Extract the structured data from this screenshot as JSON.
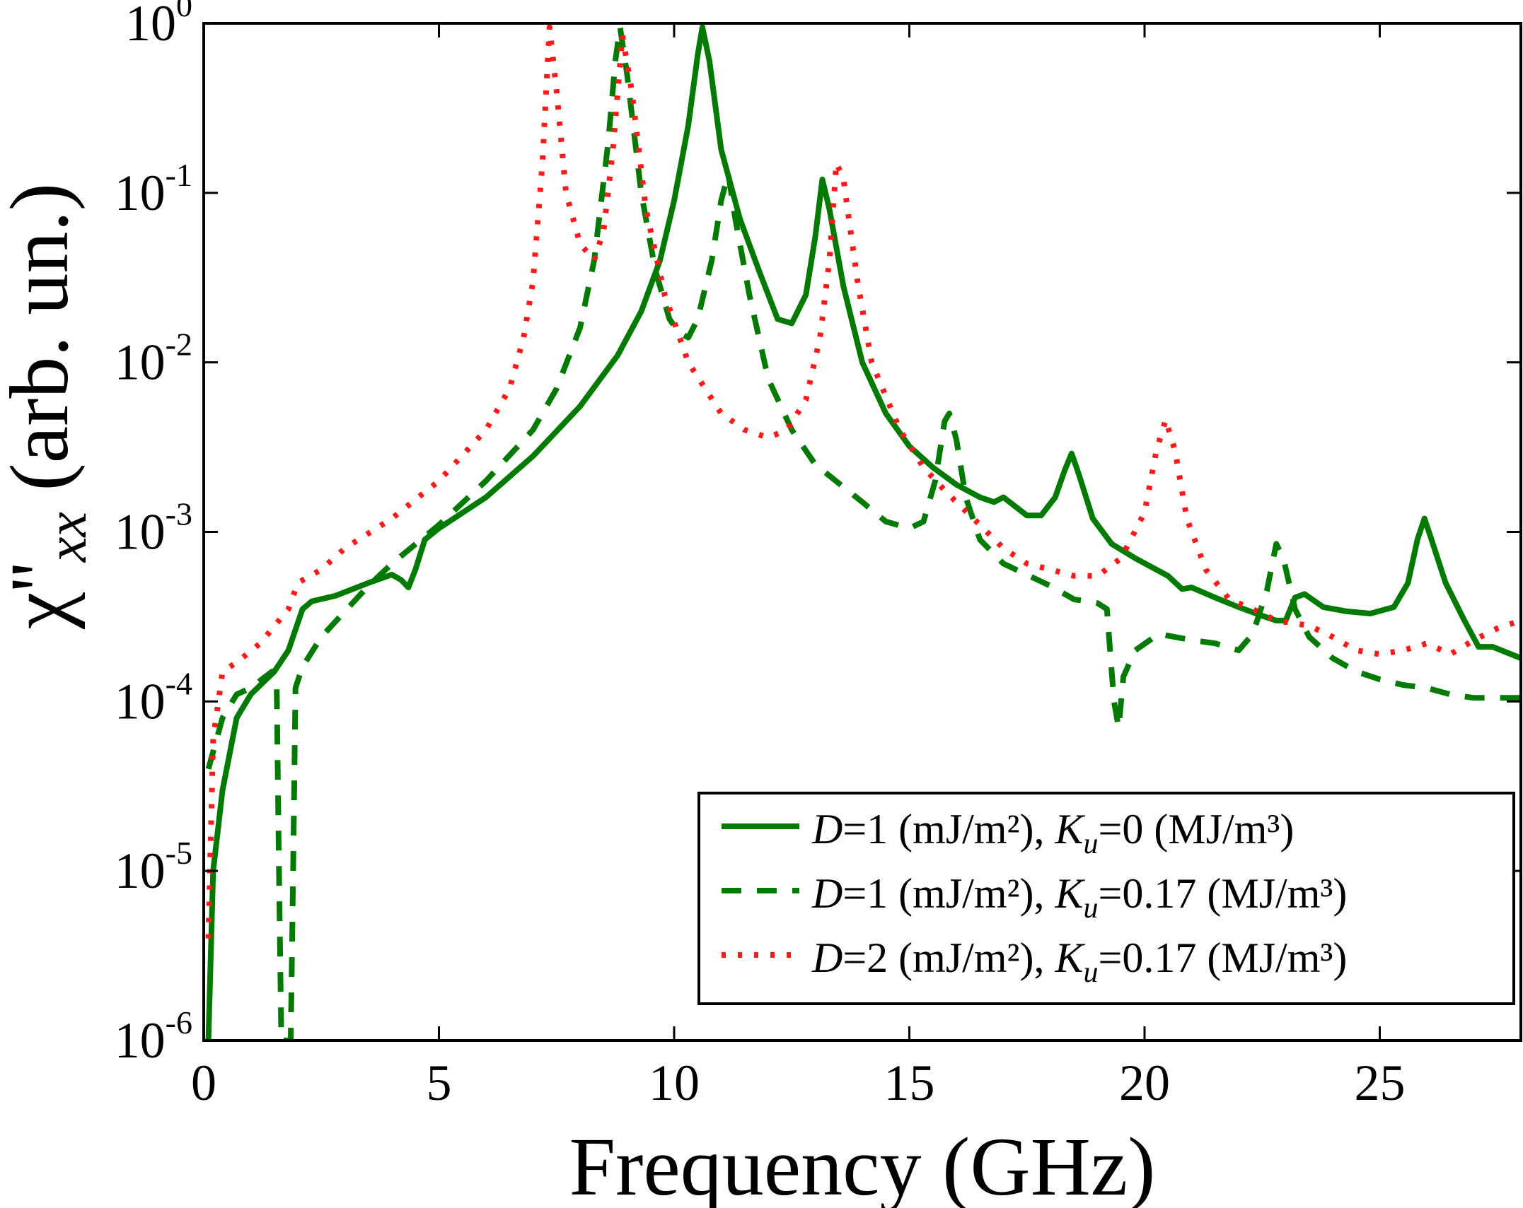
{
  "chart_data": {
    "type": "line",
    "xlabel": "Frequency (GHz)",
    "ylabel": "(arb. un.)",
    "ylabel_symbol": "χ''",
    "ylabel_subscript": "xx",
    "xlim": [
      0,
      28
    ],
    "ylim": [
      1e-06,
      1
    ],
    "yscale": "log",
    "grid": false,
    "legend_position": "lower-right",
    "x_ticks": [
      {
        "value": 0,
        "label": "0"
      },
      {
        "value": 5,
        "label": "5"
      },
      {
        "value": 10,
        "label": "10"
      },
      {
        "value": 15,
        "label": "15"
      },
      {
        "value": 20,
        "label": "20"
      },
      {
        "value": 25,
        "label": "25"
      }
    ],
    "y_ticks": [
      {
        "value": 1e-06,
        "base": "10",
        "exp": "-6"
      },
      {
        "value": 1e-05,
        "base": "10",
        "exp": "-5"
      },
      {
        "value": 0.0001,
        "base": "10",
        "exp": "-4"
      },
      {
        "value": 0.001,
        "base": "10",
        "exp": "-3"
      },
      {
        "value": 0.01,
        "base": "10",
        "exp": "-2"
      },
      {
        "value": 0.1,
        "base": "10",
        "exp": "-1"
      },
      {
        "value": 1,
        "base": "10",
        "exp": "0"
      }
    ],
    "series": [
      {
        "name": "D=1 (mJ/m²), Ku=0 (MJ/m³)",
        "legend_var1": "D",
        "legend_mid": "=1 (mJ/m²), ",
        "legend_var2": "K",
        "legend_sub": "u",
        "legend_end": "=0 (MJ/m³)",
        "color": "#007a00",
        "style": "solid",
        "points": [
          [
            0.1,
            1e-06
          ],
          [
            0.2,
            1e-05
          ],
          [
            0.4,
            3e-05
          ],
          [
            0.7,
            8e-05
          ],
          [
            1.0,
            0.00011
          ],
          [
            1.5,
            0.00015
          ],
          [
            1.8,
            0.0002
          ],
          [
            2.1,
            0.00035
          ],
          [
            2.3,
            0.00039
          ],
          [
            2.8,
            0.00042
          ],
          [
            3.5,
            0.0005
          ],
          [
            4.0,
            0.00056
          ],
          [
            4.2,
            0.00052
          ],
          [
            4.35,
            0.00047
          ],
          [
            4.5,
            0.0006
          ],
          [
            4.7,
            0.0009
          ],
          [
            5.0,
            0.00105
          ],
          [
            6.0,
            0.0016
          ],
          [
            7.0,
            0.0028
          ],
          [
            8.0,
            0.0055
          ],
          [
            8.8,
            0.011
          ],
          [
            9.3,
            0.02
          ],
          [
            9.7,
            0.04
          ],
          [
            10.0,
            0.09
          ],
          [
            10.3,
            0.25
          ],
          [
            10.5,
            0.65
          ],
          [
            10.6,
            0.95
          ],
          [
            10.75,
            0.6
          ],
          [
            11.0,
            0.18
          ],
          [
            11.4,
            0.07
          ],
          [
            11.8,
            0.035
          ],
          [
            12.2,
            0.018
          ],
          [
            12.5,
            0.017
          ],
          [
            12.8,
            0.025
          ],
          [
            13.0,
            0.055
          ],
          [
            13.15,
            0.12
          ],
          [
            13.3,
            0.08
          ],
          [
            13.6,
            0.028
          ],
          [
            14.0,
            0.01
          ],
          [
            14.5,
            0.005
          ],
          [
            15.0,
            0.0032
          ],
          [
            15.5,
            0.0024
          ],
          [
            16.0,
            0.0019
          ],
          [
            16.5,
            0.0016
          ],
          [
            16.8,
            0.0015
          ],
          [
            17.0,
            0.0016
          ],
          [
            17.2,
            0.00145
          ],
          [
            17.5,
            0.00125
          ],
          [
            17.8,
            0.00125
          ],
          [
            18.1,
            0.0016
          ],
          [
            18.3,
            0.0023
          ],
          [
            18.45,
            0.0029
          ],
          [
            18.6,
            0.0022
          ],
          [
            18.9,
            0.0012
          ],
          [
            19.3,
            0.00085
          ],
          [
            19.8,
            0.0007
          ],
          [
            20.5,
            0.00055
          ],
          [
            20.8,
            0.00046
          ],
          [
            21.0,
            0.00047
          ],
          [
            21.5,
            0.00041
          ],
          [
            22.0,
            0.00036
          ],
          [
            22.5,
            0.00032
          ],
          [
            22.8,
            0.0003
          ],
          [
            23.0,
            0.0003
          ],
          [
            23.2,
            0.00041
          ],
          [
            23.4,
            0.00043
          ],
          [
            23.8,
            0.00036
          ],
          [
            24.3,
            0.00034
          ],
          [
            24.8,
            0.00033
          ],
          [
            25.3,
            0.00036
          ],
          [
            25.6,
            0.0005
          ],
          [
            25.8,
            0.0009
          ],
          [
            25.95,
            0.0012
          ],
          [
            26.1,
            0.0009
          ],
          [
            26.4,
            0.0005
          ],
          [
            26.8,
            0.0003
          ],
          [
            27.1,
            0.00021
          ],
          [
            27.4,
            0.00021
          ],
          [
            28.0,
            0.00018
          ]
        ]
      },
      {
        "name": "D=1 (mJ/m²), Ku=0.17 (MJ/m³)",
        "legend_var1": "D",
        "legend_mid": "=1 (mJ/m²), ",
        "legend_var2": "K",
        "legend_sub": "u",
        "legend_end": "=0.17 (MJ/m³)",
        "color": "#007a00",
        "style": "dashed",
        "points": [
          [
            0.1,
            4e-05
          ],
          [
            0.4,
            8e-05
          ],
          [
            0.7,
            0.00011
          ],
          [
            1.0,
            0.00012
          ],
          [
            1.45,
            0.00015
          ],
          [
            1.55,
            0.00013
          ],
          [
            1.6,
            1e-05
          ],
          [
            1.65,
            1e-06
          ],
          [
            1.85,
            1e-06
          ],
          [
            1.9,
            1e-05
          ],
          [
            1.95,
            0.00012
          ],
          [
            2.1,
            0.00016
          ],
          [
            2.5,
            0.00024
          ],
          [
            3.0,
            0.00034
          ],
          [
            3.5,
            0.00048
          ],
          [
            4.0,
            0.00065
          ],
          [
            5.0,
            0.0011
          ],
          [
            6.0,
            0.002
          ],
          [
            7.0,
            0.004
          ],
          [
            7.5,
            0.007
          ],
          [
            8.0,
            0.016
          ],
          [
            8.3,
            0.04
          ],
          [
            8.6,
            0.2
          ],
          [
            8.75,
            0.6
          ],
          [
            8.85,
            0.95
          ],
          [
            9.0,
            0.5
          ],
          [
            9.3,
            0.1
          ],
          [
            9.6,
            0.035
          ],
          [
            9.9,
            0.018
          ],
          [
            10.1,
            0.015
          ],
          [
            10.3,
            0.014
          ],
          [
            10.5,
            0.018
          ],
          [
            10.8,
            0.04
          ],
          [
            11.0,
            0.09
          ],
          [
            11.15,
            0.13
          ],
          [
            11.3,
            0.07
          ],
          [
            11.6,
            0.025
          ],
          [
            12.0,
            0.008
          ],
          [
            12.5,
            0.004
          ],
          [
            13.0,
            0.0025
          ],
          [
            14.0,
            0.0015
          ],
          [
            14.5,
            0.00115
          ],
          [
            15.0,
            0.00105
          ],
          [
            15.3,
            0.00115
          ],
          [
            15.55,
            0.002
          ],
          [
            15.75,
            0.0045
          ],
          [
            15.85,
            0.005
          ],
          [
            16.0,
            0.0035
          ],
          [
            16.2,
            0.0016
          ],
          [
            16.5,
            0.0009
          ],
          [
            17.0,
            0.00065
          ],
          [
            18.0,
            0.00048
          ],
          [
            18.5,
            0.0004
          ],
          [
            19.0,
            0.00038
          ],
          [
            19.2,
            0.00035
          ],
          [
            19.35,
            0.0001
          ],
          [
            19.45,
            7e-05
          ],
          [
            19.55,
            0.00014
          ],
          [
            19.8,
            0.0002
          ],
          [
            20.3,
            0.00025
          ],
          [
            21.0,
            0.00023
          ],
          [
            21.5,
            0.00022
          ],
          [
            22.0,
            0.0002
          ],
          [
            22.3,
            0.00025
          ],
          [
            22.6,
            0.00045
          ],
          [
            22.8,
            0.00085
          ],
          [
            22.95,
            0.0007
          ],
          [
            23.2,
            0.00035
          ],
          [
            23.5,
            0.00024
          ],
          [
            24.0,
            0.00018
          ],
          [
            24.5,
            0.00015
          ],
          [
            25.0,
            0.000135
          ],
          [
            25.5,
            0.000125
          ],
          [
            26.0,
            0.00012
          ],
          [
            26.5,
            0.00011
          ],
          [
            27.0,
            0.000105
          ],
          [
            28.0,
            0.000105
          ]
        ]
      },
      {
        "name": "D=2 (mJ/m²), Ku=0.17 (MJ/m³)",
        "legend_var1": "D",
        "legend_mid": "=2 (mJ/m²), ",
        "legend_var2": "K",
        "legend_sub": "u",
        "legend_end": "=0.17 (MJ/m³)",
        "color": "#ff1a1a",
        "style": "dotted",
        "points": [
          [
            0.1,
            4e-06
          ],
          [
            0.2,
            6e-05
          ],
          [
            0.4,
            0.00015
          ],
          [
            0.7,
            0.00017
          ],
          [
            1.2,
            0.00022
          ],
          [
            1.8,
            0.00035
          ],
          [
            2.0,
            0.0005
          ],
          [
            2.5,
            0.0006
          ],
          [
            3.0,
            0.0008
          ],
          [
            4.0,
            0.0012
          ],
          [
            5.0,
            0.002
          ],
          [
            6.0,
            0.004
          ],
          [
            6.5,
            0.007
          ],
          [
            6.8,
            0.014
          ],
          [
            7.0,
            0.03
          ],
          [
            7.2,
            0.15
          ],
          [
            7.35,
            0.95
          ],
          [
            7.5,
            0.4
          ],
          [
            7.7,
            0.1
          ],
          [
            8.0,
            0.05
          ],
          [
            8.3,
            0.04
          ],
          [
            8.5,
            0.06
          ],
          [
            8.7,
            0.18
          ],
          [
            8.9,
            0.85
          ],
          [
            9.1,
            0.4
          ],
          [
            9.4,
            0.08
          ],
          [
            9.8,
            0.025
          ],
          [
            10.3,
            0.01
          ],
          [
            11.0,
            0.005
          ],
          [
            11.5,
            0.004
          ],
          [
            12.0,
            0.0036
          ],
          [
            12.4,
            0.004
          ],
          [
            12.8,
            0.006
          ],
          [
            13.1,
            0.014
          ],
          [
            13.3,
            0.04
          ],
          [
            13.45,
            0.15
          ],
          [
            13.6,
            0.12
          ],
          [
            13.9,
            0.03
          ],
          [
            14.2,
            0.01
          ],
          [
            14.8,
            0.004
          ],
          [
            15.3,
            0.0024
          ],
          [
            15.8,
            0.0017
          ],
          [
            16.5,
            0.0011
          ],
          [
            17.0,
            0.0008
          ],
          [
            17.5,
            0.00065
          ],
          [
            18.0,
            0.0006
          ],
          [
            18.5,
            0.00055
          ],
          [
            19.0,
            0.00055
          ],
          [
            19.5,
            0.0007
          ],
          [
            20.0,
            0.0013
          ],
          [
            20.25,
            0.003
          ],
          [
            20.45,
            0.0046
          ],
          [
            20.65,
            0.003
          ],
          [
            20.9,
            0.0012
          ],
          [
            21.3,
            0.0006
          ],
          [
            21.8,
            0.0004
          ],
          [
            22.3,
            0.00035
          ],
          [
            22.8,
            0.0003
          ],
          [
            23.5,
            0.00028
          ],
          [
            24.0,
            0.00024
          ],
          [
            24.5,
            0.0002
          ],
          [
            25.0,
            0.00019
          ],
          [
            25.5,
            0.0002
          ],
          [
            26.0,
            0.00022
          ],
          [
            26.5,
            0.00019
          ],
          [
            27.0,
            0.00023
          ],
          [
            27.5,
            0.00027
          ],
          [
            28.0,
            0.0003
          ]
        ]
      }
    ]
  }
}
